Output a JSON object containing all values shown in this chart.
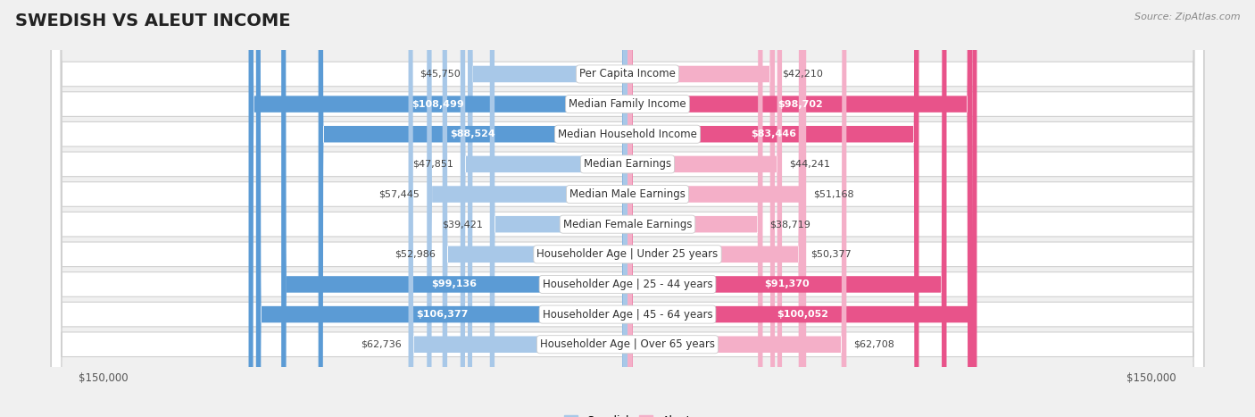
{
  "title": "SWEDISH VS ALEUT INCOME",
  "source": "Source: ZipAtlas.com",
  "categories": [
    "Per Capita Income",
    "Median Family Income",
    "Median Household Income",
    "Median Earnings",
    "Median Male Earnings",
    "Median Female Earnings",
    "Householder Age | Under 25 years",
    "Householder Age | 25 - 44 years",
    "Householder Age | 45 - 64 years",
    "Householder Age | Over 65 years"
  ],
  "swedish_values": [
    45750,
    108499,
    88524,
    47851,
    57445,
    39421,
    52986,
    99136,
    106377,
    62736
  ],
  "aleut_values": [
    42210,
    98702,
    83446,
    44241,
    51168,
    38719,
    50377,
    91370,
    100052,
    62708
  ],
  "swedish_color_normal": "#a8c8e8",
  "swedish_color_large": "#5b9bd5",
  "aleut_color_normal": "#f4afc8",
  "aleut_color_large": "#e8538a",
  "large_threshold": 80000,
  "xlim": 150000,
  "bg_color": "#f0f0f0",
  "row_bg_color": "#ffffff",
  "label_font_size": 8.5,
  "value_font_size": 8,
  "title_font_size": 14,
  "source_font_size": 8,
  "legend_font_size": 9
}
